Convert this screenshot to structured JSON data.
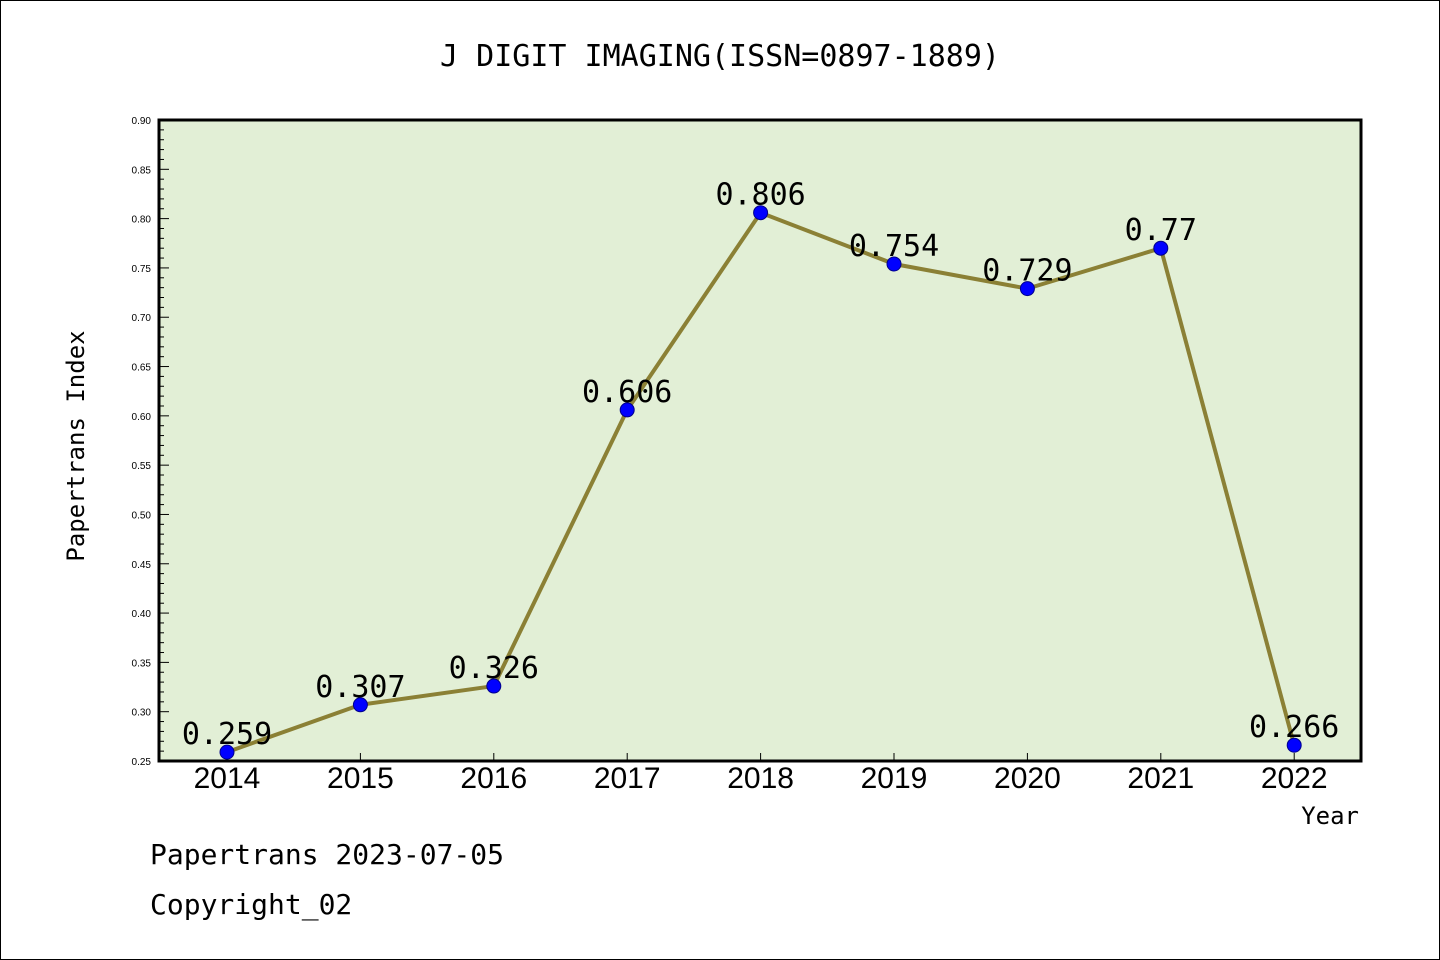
{
  "chart_data": {
    "type": "line",
    "title": "J DIGIT IMAGING(ISSN=0897-1889)",
    "xlabel": "Year",
    "ylabel": "Papertrans Index",
    "categories": [
      "2014",
      "2015",
      "2016",
      "2017",
      "2018",
      "2019",
      "2020",
      "2021",
      "2022"
    ],
    "series": [
      {
        "values": [
          0.259,
          0.307,
          0.326,
          0.606,
          0.806,
          0.754,
          0.729,
          0.77,
          0.266
        ]
      }
    ],
    "data_labels": [
      "0.259",
      "0.307",
      "0.326",
      "0.606",
      "0.806",
      "0.754",
      "0.729",
      "0.77",
      "0.266"
    ],
    "ylim": [
      0.25,
      0.9
    ],
    "yticks": [
      "0.25",
      "0.30",
      "0.35",
      "0.40",
      "0.45",
      "0.50",
      "0.55",
      "0.60",
      "0.65",
      "0.70",
      "0.75",
      "0.80",
      "0.85",
      "0.90"
    ],
    "grid": false,
    "legend": "none",
    "colors": {
      "plot_bg": "#e2efd6",
      "line": "#8b8035",
      "marker": "#0000ff"
    }
  },
  "footer": {
    "line1": "Papertrans 2023-07-05",
    "line2": "Copyright_02"
  }
}
